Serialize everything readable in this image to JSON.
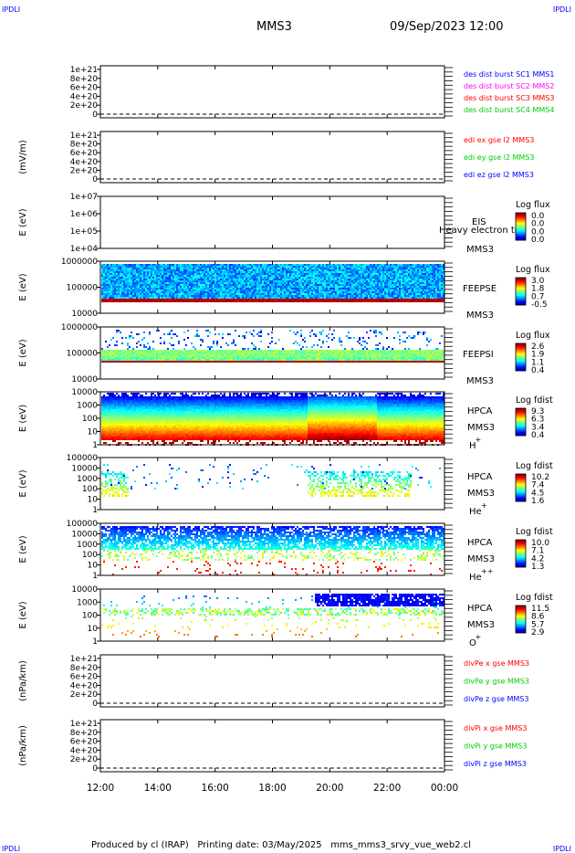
{
  "corner_labels": {
    "tl": "IPDLI",
    "tr": "IPDLI",
    "bl": "IPDLI",
    "br": "IPDLI"
  },
  "header": {
    "spacecraft": "MMS3",
    "datetime": "09/Sep/2023 12:00"
  },
  "footer": "Produced by cl (IRAP)   Printing date: 03/May/2025   mms_mms3_srvy_vue_web2.cl",
  "colors": {
    "frame": "#000000",
    "red": "#ff0000",
    "green": "#00cc00",
    "blue": "#0000ff",
    "magenta": "#ff00ff"
  },
  "chart_data": [
    {
      "type": "line",
      "name": "des dist burst",
      "ylabel": "",
      "yticks": [
        "1e+21",
        "8e+20",
        "6e+20",
        "4e+20",
        "2e+20",
        "0"
      ],
      "ylim": [
        0,
        1e+21
      ],
      "dashed_zero": true,
      "x": [
        "12:00",
        "14:00",
        "16:00",
        "18:00",
        "20:00",
        "22:00",
        "00:00"
      ],
      "legend": [
        {
          "text": "des dist burst SC1 MMS1",
          "color": "#0000ff"
        },
        {
          "text": "des dist burst SC2 MMS2",
          "color": "#ff00ff"
        },
        {
          "text": "des dist burst SC3 MMS3",
          "color": "#ff0000"
        },
        {
          "text": "des dist burst SC4 MMS4",
          "color": "#00cc00"
        }
      ]
    },
    {
      "type": "line",
      "name": "edi",
      "ylabel": "(mV/m)",
      "yticks": [
        "1e+21",
        "8e+20",
        "6e+20",
        "4e+20",
        "2e+20",
        "0"
      ],
      "ylim": [
        0,
        1e+21
      ],
      "dashed_zero": true,
      "legend": [
        {
          "text": "edi ex gse l2 MMS3",
          "color": "#ff0000"
        },
        {
          "text": "edi ey gse l2 MMS3",
          "color": "#00cc00"
        },
        {
          "text": "edi ez gse l2 MMS3",
          "color": "#0000ff"
        }
      ]
    },
    {
      "type": "heatmap",
      "name": "EIS",
      "ylabel": "E (eV)",
      "yticks": [
        "1e+07",
        "1e+06",
        "1e+05",
        "1e+04"
      ],
      "log": true,
      "labels": [
        "EIS",
        "Heavy electron to",
        "MMS3"
      ],
      "colorbar": {
        "title": "Log flux",
        "ticks": [
          "0.0",
          "0.0",
          "0.0",
          "0.0"
        ]
      },
      "data": "empty"
    },
    {
      "type": "heatmap",
      "name": "FEEPSE",
      "ylabel": "E (eV)",
      "yticks": [
        "1000000",
        "100000",
        "10000"
      ],
      "log": true,
      "ylim": [
        10000,
        1000000
      ],
      "labels": [
        "FEEPSE",
        "MMS3"
      ],
      "colorbar": {
        "title": "Log flux",
        "ticks": [
          "3.0",
          "1.8",
          "0.7",
          "-0.5"
        ]
      },
      "data": "dense blue/cyan flux above ~40 keV, red band near 40 keV"
    },
    {
      "type": "heatmap",
      "name": "FEEPSI",
      "ylabel": "E (eV)",
      "yticks": [
        "1000000",
        "100000",
        "10000"
      ],
      "log": true,
      "ylim": [
        10000,
        1000000
      ],
      "labels": [
        "FEEPSI",
        "MMS3"
      ],
      "colorbar": {
        "title": "Log flux",
        "ticks": [
          "2.6",
          "1.9",
          "1.1",
          "0.4"
        ]
      },
      "data": "sparse speckles, green band ~100 keV, red band ~60 keV"
    },
    {
      "type": "heatmap",
      "name": "HPCA H+",
      "ylabel": "E (eV)",
      "yticks": [
        "10000",
        "1000",
        "100",
        "10",
        "1"
      ],
      "log": true,
      "ylim": [
        1,
        30000
      ],
      "labels": [
        "HPCA",
        "MMS3",
        "H",
        "+"
      ],
      "colorbar": {
        "title": "Log fdist",
        "ticks": [
          "9.3",
          "6.3",
          "3.4",
          "0.4"
        ]
      },
      "data": "dense rainbow spectrogram, blue at top to red at bottom"
    },
    {
      "type": "heatmap",
      "name": "HPCA He+",
      "ylabel": "E (eV)",
      "yticks": [
        "100000",
        "10000",
        "1000",
        "100",
        "10",
        "1"
      ],
      "log": true,
      "ylim": [
        1,
        100000
      ],
      "labels": [
        "HPCA",
        "MMS3",
        "He",
        "+"
      ],
      "colorbar": {
        "title": "Log fdist",
        "ticks": [
          "10.2",
          "7.4",
          "4.5",
          "1.6"
        ]
      },
      "data": "sparse, clusters near 12:00-13:00 and 19:00-23:00"
    },
    {
      "type": "heatmap",
      "name": "HPCA He++",
      "ylabel": "E (eV)",
      "yticks": [
        "100000",
        "10000",
        "1000",
        "100",
        "10",
        "1"
      ],
      "log": true,
      "ylim": [
        1,
        100000
      ],
      "labels": [
        "HPCA",
        "MMS3",
        "He",
        "++"
      ],
      "colorbar": {
        "title": "Log fdist",
        "ticks": [
          "10.0",
          "7.1",
          "4.2",
          "1.3"
        ]
      },
      "data": "dense blue/green band 300 eV-10 keV"
    },
    {
      "type": "heatmap",
      "name": "HPCA O+",
      "ylabel": "E (eV)",
      "yticks": [
        "10000",
        "1000",
        "100",
        "10",
        "1"
      ],
      "log": true,
      "ylim": [
        1,
        30000
      ],
      "labels": [
        "HPCA",
        "MMS3",
        "O",
        "+"
      ],
      "colorbar": {
        "title": "Log fdist",
        "ticks": [
          "11.5",
          "8.6",
          "5.7",
          "2.9"
        ]
      },
      "data": "sparse, dense blue block ~19:00-00:00 near 5 keV"
    },
    {
      "type": "line",
      "name": "divPe",
      "ylabel": "(nPa/km)",
      "yticks": [
        "1e+21",
        "8e+20",
        "6e+20",
        "4e+20",
        "2e+20",
        "0"
      ],
      "ylim": [
        0,
        1e+21
      ],
      "dashed_zero": true,
      "legend": [
        {
          "text": "divPe x gse MMS3",
          "color": "#ff0000"
        },
        {
          "text": "divPe y gse MMS3",
          "color": "#00cc00"
        },
        {
          "text": "divPe z gse MMS3",
          "color": "#0000ff"
        }
      ]
    },
    {
      "type": "line",
      "name": "divPi",
      "ylabel": "(nPa/km)",
      "yticks": [
        "1e+21",
        "8e+20",
        "6e+20",
        "4e+20",
        "2e+20",
        "0"
      ],
      "ylim": [
        0,
        1e+21
      ],
      "dashed_zero": true,
      "legend": [
        {
          "text": "divPi x gse MMS3",
          "color": "#ff0000"
        },
        {
          "text": "divPi y gse MMS3",
          "color": "#00cc00"
        },
        {
          "text": "divPi z gse MMS3",
          "color": "#0000ff"
        }
      ]
    }
  ],
  "xaxis": [
    "12:00",
    "14:00",
    "16:00",
    "18:00",
    "20:00",
    "22:00",
    "00:00"
  ]
}
